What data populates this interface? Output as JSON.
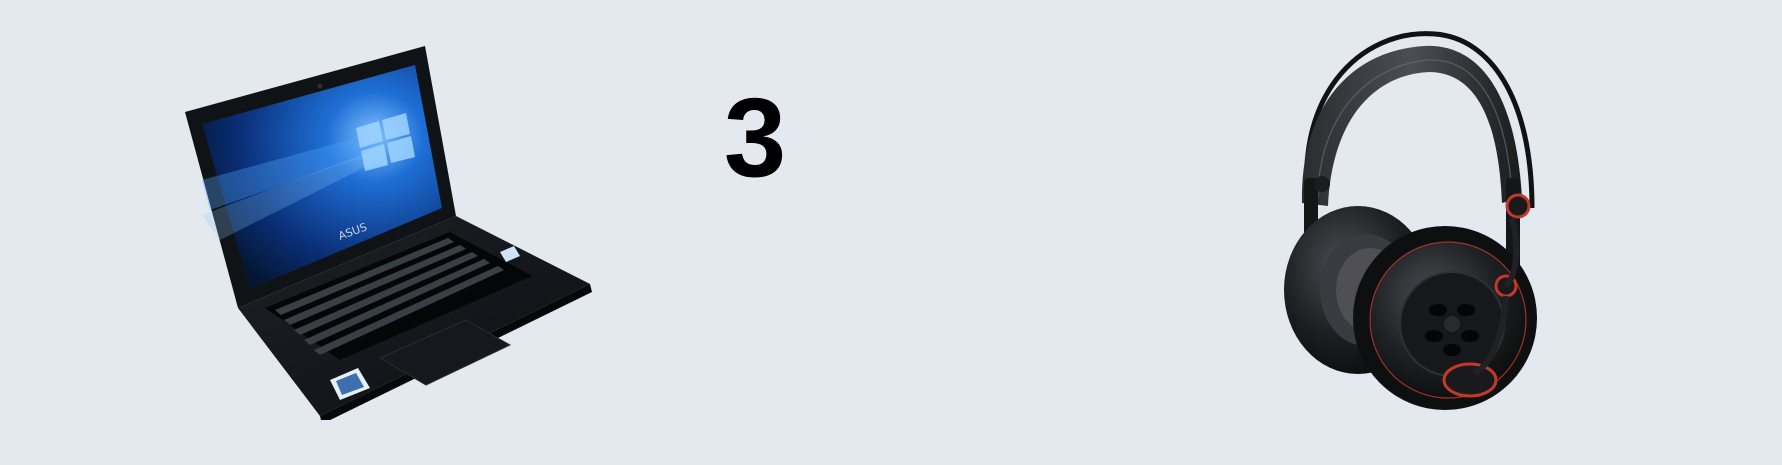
{
  "counter": {
    "value": "3"
  },
  "laptop": {
    "icon": "laptop-icon",
    "brand_label": "ASUS",
    "screen_color": "#0b3a8c"
  },
  "headphones": {
    "icon": "headphones-icon",
    "accent_color": "#c0392b"
  },
  "colors": {
    "background": "#e4e8ef",
    "text": "#000000"
  }
}
